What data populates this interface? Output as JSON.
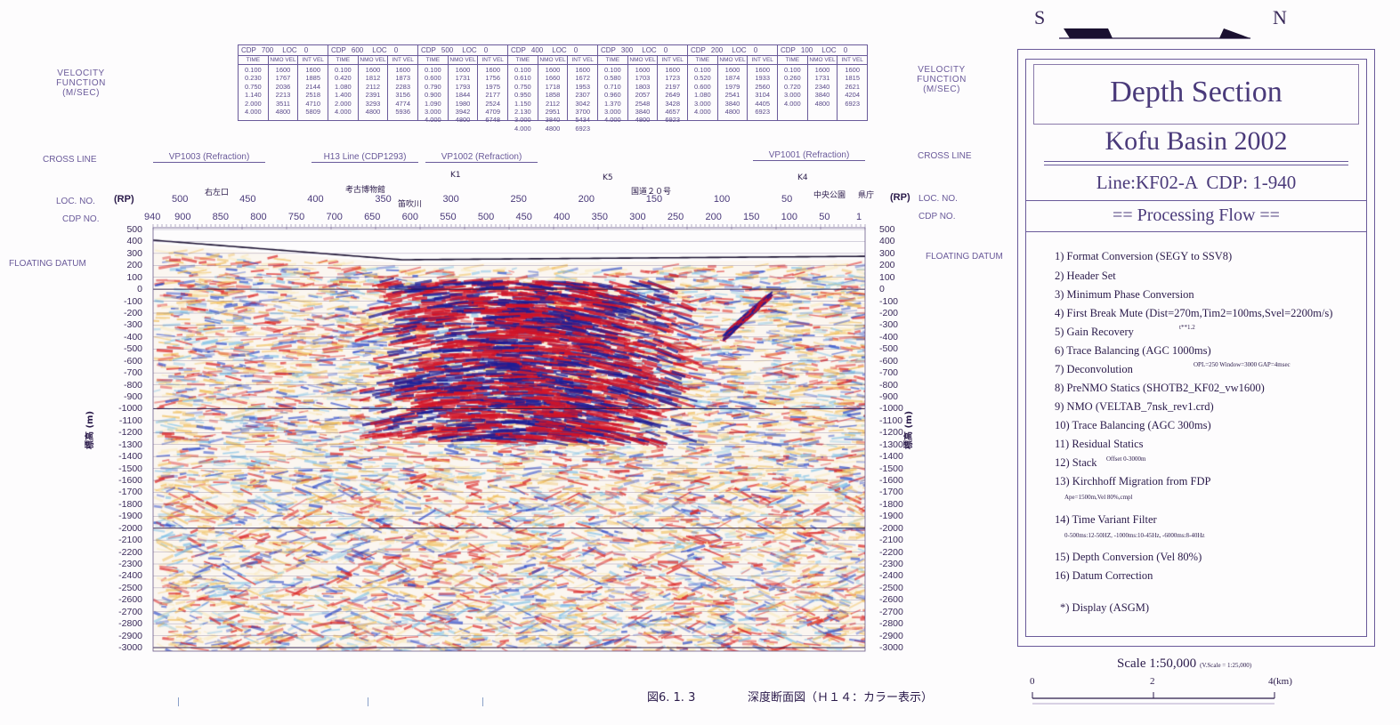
{
  "compass": {
    "south": "S",
    "north": "N"
  },
  "velocity_label": [
    "VELOCITY",
    "FUNCTION",
    "(M/SEC)"
  ],
  "velocity_table": [
    {
      "cdp": "700",
      "loc": "0",
      "time": "0.100\n0.230\n0.750\n1.140\n2.000\n4.000",
      "nmo": "1600\n1767\n2036\n2213\n3511\n4800",
      "int": "1600\n1885\n2144\n2518\n4710\n5809"
    },
    {
      "cdp": "600",
      "loc": "0",
      "time": "0.100\n0.420\n1.080\n1.400\n2.000\n4.000",
      "nmo": "1600\n1812\n2112\n2391\n3293\n4800",
      "int": "1600\n1873\n2283\n3156\n4774\n5936"
    },
    {
      "cdp": "500",
      "loc": "0",
      "time": "0.100\n0.600\n0.790\n0.900\n1.090\n3.000\n4.000",
      "nmo": "1600\n1731\n1793\n1844\n1980\n3942\n4800",
      "int": "1600\n1756\n1975\n2177\n2524\n4709\n6748"
    },
    {
      "cdp": "400",
      "loc": "0",
      "time": "0.100\n0.610\n0.750\n0.950\n1.150\n2.130\n3.000\n4.000",
      "nmo": "1600\n1660\n1718\n1858\n2112\n2951\n3840\n4800",
      "int": "1600\n1672\n1953\n2307\n3042\n3700\n5434\n6923"
    },
    {
      "cdp": "300",
      "loc": "0",
      "time": "0.100\n0.580\n0.710\n0.960\n1.370\n3.000\n4.000",
      "nmo": "1600\n1703\n1803\n2057\n2548\n3840\n4800",
      "int": "1600\n1723\n2197\n2649\n3428\n4657\n6923"
    },
    {
      "cdp": "200",
      "loc": "0",
      "time": "0.100\n0.520\n0.600\n1.080\n3.000\n4.000",
      "nmo": "1600\n1874\n1979\n2541\n3840\n4800",
      "int": "1600\n1933\n2560\n3104\n4405\n6923"
    },
    {
      "cdp": "100",
      "loc": "0",
      "time": "0.100\n0.260\n0.720\n3.000\n4.000",
      "nmo": "1600\n1731\n2340\n3840\n4800",
      "int": "1600\n1815\n2621\n4204\n6923"
    }
  ],
  "table_heads": {
    "cdp": "CDP",
    "loc": "LOC",
    "time": "TIME",
    "nmo": "NMO VEL",
    "int": "INT VEL"
  },
  "cross_line_label": "CROSS LINE",
  "cross_lines": [
    "VP1003 (Refraction)",
    "H13 Line (CDP1293)",
    "VP1002 (Refraction)",
    "VP1001 (Refraction)"
  ],
  "loc_no_label": "LOC. NO.",
  "cdp_no_label": "CDP NO.",
  "rp_label": "(RP)",
  "floating_datum": "FLOATING DATUM",
  "y_axis_label": "標高 (m)",
  "chart_data": {
    "type": "heatmap",
    "title": "Depth Section",
    "x_cdp_ticks": [
      940,
      900,
      850,
      800,
      750,
      700,
      650,
      600,
      550,
      500,
      450,
      400,
      350,
      300,
      250,
      200,
      150,
      100,
      50,
      1
    ],
    "x_loc_ticks": [
      500,
      450,
      400,
      350,
      300,
      250,
      200,
      150,
      100,
      50
    ],
    "y_ticks": [
      500,
      400,
      300,
      200,
      100,
      0,
      -100,
      -200,
      -300,
      -400,
      -500,
      -600,
      -700,
      -800,
      -900,
      -1000,
      -1100,
      -1200,
      -1300,
      -1400,
      -1500,
      -1600,
      -1700,
      -1800,
      -1900,
      -2000,
      -2100,
      -2200,
      -2300,
      -2400,
      -2500,
      -2600,
      -2700,
      -2800,
      -2900,
      -3000
    ],
    "ylim": [
      -3000,
      500
    ],
    "ylabel": "標高 (m)",
    "place_labels": [
      "右左口",
      "考古博物館",
      "笛吹川",
      "K1",
      "K5",
      "国道２０号",
      "K4",
      "中央公園",
      "県庁"
    ]
  },
  "panel": {
    "title": "Depth Section",
    "subtitle": "Kofu Basin 2002",
    "line_info": "Line:KF02-A  CDP: 1-940",
    "flow_heading": "== Processing Flow ==",
    "steps": [
      "1) Format Conversion (SEGY to SSV8)",
      "2) Header Set",
      "3) Minimum Phase Conversion",
      "4) First Break Mute (Dist=270m,Tim2=100ms,Svel=2200m/s)",
      "5) Gain Recovery",
      "6) Trace Balancing (AGC 1000ms)",
      "7) Deconvolution",
      "8) PreNMO Statics (SHOTB2_KF02_vw1600)",
      "9) NMO (VELTAB_7nsk_rev1.crd)",
      "10) Trace Balancing (AGC 300ms)",
      "11) Residual Statics",
      "12) Stack",
      "13) Kirchhoff Migration from FDP",
      "14) Time Variant Filter",
      "15) Depth Conversion (Vel 80%)",
      "16) Datum Correction"
    ],
    "notes": {
      "gain": "t**1.2",
      "decon": "OPL=250 Window=3000 GAP=4msec",
      "stack": "Offset 0-3000m",
      "migration": "Ape=1500m,Vel 80%,cmpl",
      "filter": "0-500ms:12-50HZ, -1000ms:10-45Hz, -6000ms:8-40Hz"
    },
    "display": "*) Display (ASGM)"
  },
  "scale": {
    "label": "Scale 1:50,000",
    "vscale": "(V.Scale = 1:25,000)",
    "ticks": [
      "0",
      "2",
      "4(km)"
    ]
  },
  "caption": {
    "fig": "図6. 1. 3",
    "text": "深度断面図（Ｈ１４：カラー表示）"
  }
}
